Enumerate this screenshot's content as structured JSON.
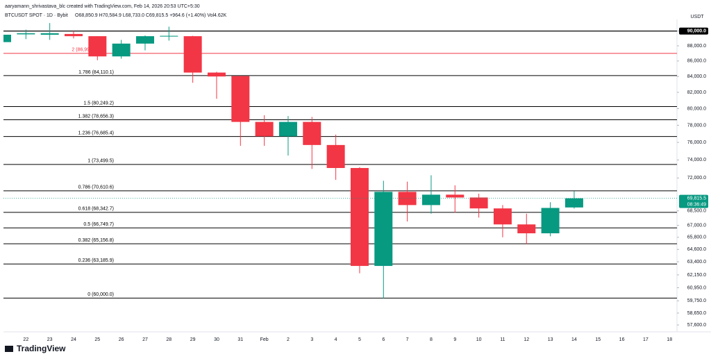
{
  "chart_data": {
    "type": "candlestick",
    "attribution": "aaryamann_shrivastava_blc created with TradingView.com, Feb 14, 2026 20:53 UTC+5:30",
    "symbol": "BTCUSDT SPOT · 1D · Bybit",
    "ohlc_header": "O68,850.9 H70,584.9 L68,733.0 C69,815.5 +964.6 (+1.40%) Vol4.62K",
    "y_axis_unit": "USDT",
    "logo": "TradingView",
    "categories": [
      null,
      "22",
      "23",
      "24",
      "25",
      "26",
      "27",
      "28",
      "29",
      "30",
      "31",
      "Feb",
      "2",
      "3",
      "4",
      "5",
      "6",
      "7",
      "8",
      "9",
      "10",
      "11",
      "12",
      "13",
      "14",
      "15",
      "16",
      "17",
      "18"
    ],
    "open": [
      88500,
      89550,
      89500,
      89600,
      89300,
      86600,
      88300,
      89250,
      89300,
      84500,
      84050,
      78400,
      76700,
      78400,
      75700,
      73100,
      63000,
      70500,
      69100,
      70200,
      69900,
      68750,
      67100,
      66200,
      68850.9,
      null,
      null,
      null,
      null
    ],
    "high": [
      89700,
      90200,
      91100,
      90000,
      89300,
      88800,
      89400,
      90600,
      89350,
      84600,
      84100,
      79200,
      79100,
      79000,
      76900,
      73200,
      71700,
      71600,
      72300,
      71200,
      70300,
      69100,
      68200,
      69400,
      70584.9,
      null,
      null,
      null,
      null
    ],
    "low": [
      88300,
      88900,
      88800,
      89000,
      86100,
      86300,
      87400,
      88700,
      83200,
      81200,
      75600,
      75600,
      74500,
      73000,
      71800,
      62300,
      59940,
      67400,
      68200,
      68300,
      67800,
      65800,
      65100,
      65900,
      68733.0,
      null,
      null,
      null,
      null
    ],
    "close": [
      89500,
      89700,
      89700,
      89300,
      86600,
      88300,
      89300,
      89350,
      84500,
      84000,
      78400,
      76700,
      78400,
      75700,
      73100,
      63000,
      70500,
      69100,
      70200,
      69900,
      68750,
      67100,
      66200,
      68800,
      69815.5,
      null,
      null,
      null,
      null
    ],
    "up_color": "#089981",
    "down_color": "#f23645",
    "log_scale": true,
    "ylim": [
      57000,
      91600
    ],
    "yticks": [
      {
        "value": 90000,
        "label": "90,000.0"
      },
      {
        "value": 88000,
        "label": "88,000.0"
      },
      {
        "value": 86000,
        "label": "86,000.0"
      },
      {
        "value": 84000,
        "label": "84,000.0"
      },
      {
        "value": 82000,
        "label": "82,000.0"
      },
      {
        "value": 80000,
        "label": "80,000.0"
      },
      {
        "value": 78000,
        "label": "78,000.0"
      },
      {
        "value": 76000,
        "label": "76,000.0"
      },
      {
        "value": 74000,
        "label": "74,000.0"
      },
      {
        "value": 72000,
        "label": "72,000.0"
      },
      {
        "value": 68500,
        "label": "68,500.0"
      },
      {
        "value": 67000,
        "label": "67,000.0"
      },
      {
        "value": 65800,
        "label": "65,800.0"
      },
      {
        "value": 64600,
        "label": "64,600.0"
      },
      {
        "value": 63400,
        "label": "63,400.0"
      },
      {
        "value": 62150,
        "label": "62,150.0"
      },
      {
        "value": 60950,
        "label": "60,950.0"
      },
      {
        "value": 59750,
        "label": "59,750.0"
      },
      {
        "value": 58650,
        "label": "58,650.0"
      },
      {
        "value": 57600,
        "label": "57,600.0"
      }
    ],
    "horizontal_line": {
      "value": 90000,
      "color": "#000000"
    },
    "fib_levels": [
      {
        "label": "2 (86,999",
        "value": 86999,
        "color": "#f23645"
      },
      {
        "label": "1.786 (84,110.1)",
        "value": 84110.1,
        "color": "#000000"
      },
      {
        "label": "1.5 (80,249.2)",
        "value": 80249.2,
        "color": "#000000"
      },
      {
        "label": "1.382 (78,656.3)",
        "value": 78656.3,
        "color": "#000000"
      },
      {
        "label": "1.236 (76,685.4)",
        "value": 76685.4,
        "color": "#000000"
      },
      {
        "label": "1 (73,499.5)",
        "value": 73499.5,
        "color": "#000000"
      },
      {
        "label": "0.786 (70,610.6)",
        "value": 70610.6,
        "color": "#000000"
      },
      {
        "label": "0.618 (68,342.7)",
        "value": 68342.7,
        "color": "#000000"
      },
      {
        "label": "0.5 (66,749.7)",
        "value": 66749.7,
        "color": "#000000"
      },
      {
        "label": "0.382 (65,156.8)",
        "value": 65156.8,
        "color": "#000000"
      },
      {
        "label": "0.236 (63,185.9)",
        "value": 63185.9,
        "color": "#000000"
      },
      {
        "label": "0 (60,000.0)",
        "value": 60000,
        "color": "#000000"
      }
    ],
    "last_price_label": "69,815.5",
    "countdown": "08:36:49"
  }
}
